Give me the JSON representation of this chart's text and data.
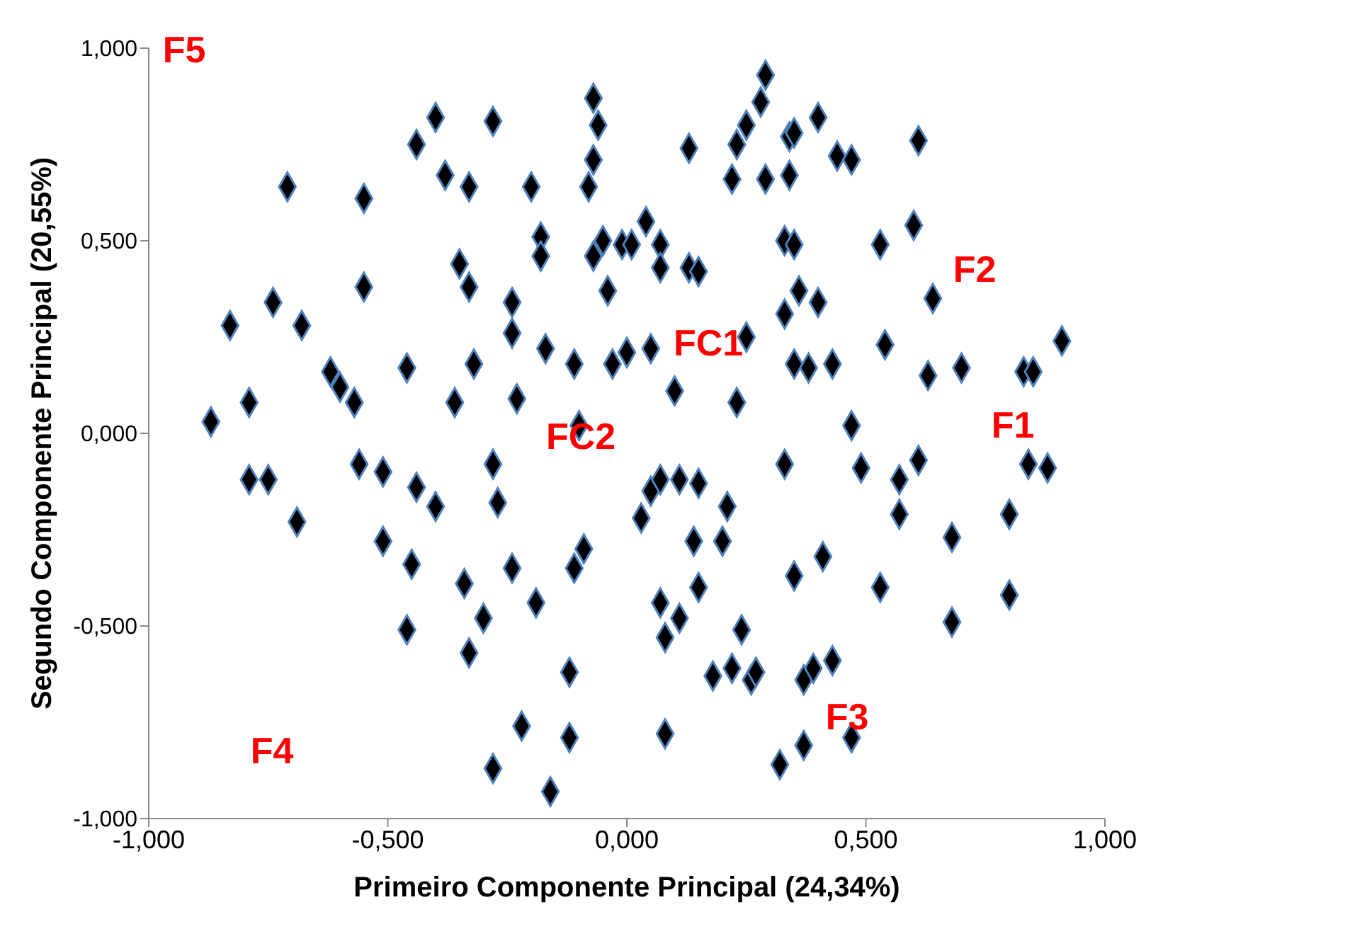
{
  "chart_data": {
    "type": "scatter",
    "xlabel": "Primeiro Componente Principal (24,34%)",
    "ylabel": "Segundo Componente Principal (20,55%)",
    "xlim": [
      -1,
      1
    ],
    "ylim": [
      -1,
      1
    ],
    "xticks": [
      {
        "value": -1,
        "label": "-1,000"
      },
      {
        "value": -0.5,
        "label": "-0,500"
      },
      {
        "value": 0,
        "label": "0,000"
      },
      {
        "value": 0.5,
        "label": "0,500"
      },
      {
        "value": 1,
        "label": "1,000"
      }
    ],
    "yticks": [
      {
        "value": -1,
        "label": "-1,000"
      },
      {
        "value": -0.5,
        "label": "-0,500"
      },
      {
        "value": 0,
        "label": "0,000"
      },
      {
        "value": 0.5,
        "label": "0,500"
      },
      {
        "value": 1,
        "label": "1,000"
      }
    ],
    "grid": false,
    "legend": false,
    "marker": "diamond",
    "x": [
      -0.87,
      -0.79,
      -0.83,
      -0.74,
      -0.68,
      -0.71,
      -0.55,
      -0.55,
      -0.62,
      -0.6,
      -0.57,
      -0.46,
      -0.44,
      -0.4,
      -0.38,
      -0.33,
      -0.35,
      -0.33,
      -0.36,
      -0.32,
      -0.28,
      -0.24,
      -0.24,
      -0.23,
      -0.2,
      -0.18,
      -0.18,
      -0.17,
      -0.11,
      -0.08,
      -0.07,
      -0.07,
      -0.06,
      -0.07,
      -0.05,
      -0.04,
      -0.03,
      -0.1,
      0.0,
      -0.01,
      0.29,
      0.28,
      0.25,
      0.23,
      0.13,
      0.4,
      0.34,
      0.35,
      0.44,
      0.47,
      0.61,
      0.22,
      0.29,
      0.34,
      0.04,
      0.01,
      0.07,
      0.07,
      0.13,
      0.15,
      0.33,
      0.35,
      0.53,
      0.6,
      0.36,
      0.4,
      0.33,
      0.64,
      0.25,
      0.54,
      0.91,
      0.05,
      0.35,
      0.38,
      0.43,
      0.63,
      0.7,
      0.83,
      0.85,
      0.1,
      0.23,
      0.47,
      -0.79,
      -0.75,
      -0.69,
      -0.56,
      -0.51,
      -0.44,
      -0.4,
      -0.51,
      -0.45,
      -0.46,
      -0.34,
      -0.3,
      -0.33,
      -0.28,
      -0.27,
      -0.24,
      -0.19,
      -0.09,
      -0.11,
      -0.12,
      -0.22,
      -0.12,
      -0.28,
      -0.16,
      0.33,
      0.49,
      0.57,
      0.61,
      0.84,
      0.88,
      0.05,
      0.07,
      0.11,
      0.15,
      0.03,
      0.21,
      0.14,
      0.2,
      0.57,
      0.8,
      0.68,
      0.41,
      0.35,
      0.15,
      0.53,
      0.8,
      0.07,
      0.11,
      0.08,
      0.24,
      0.68,
      0.18,
      0.22,
      0.26,
      0.27,
      0.37,
      0.39,
      0.43,
      0.08,
      0.47,
      0.37,
      0.32
    ],
    "values": [
      0.03,
      0.08,
      0.28,
      0.34,
      0.28,
      0.64,
      0.61,
      0.38,
      0.16,
      0.12,
      0.08,
      0.17,
      0.75,
      0.82,
      0.67,
      0.64,
      0.44,
      0.38,
      0.08,
      0.18,
      0.81,
      0.34,
      0.26,
      0.09,
      0.64,
      0.51,
      0.46,
      0.22,
      0.18,
      0.64,
      0.71,
      0.87,
      0.8,
      0.46,
      0.5,
      0.37,
      0.18,
      0.02,
      0.21,
      0.49,
      0.93,
      0.86,
      0.8,
      0.75,
      0.74,
      0.82,
      0.77,
      0.78,
      0.72,
      0.71,
      0.76,
      0.66,
      0.66,
      0.67,
      0.55,
      0.49,
      0.49,
      0.43,
      0.43,
      0.42,
      0.5,
      0.49,
      0.49,
      0.54,
      0.37,
      0.34,
      0.31,
      0.35,
      0.25,
      0.23,
      0.24,
      0.22,
      0.18,
      0.17,
      0.18,
      0.15,
      0.17,
      0.16,
      0.16,
      0.11,
      0.08,
      0.02,
      -0.12,
      -0.12,
      -0.23,
      -0.08,
      -0.1,
      -0.14,
      -0.19,
      -0.28,
      -0.34,
      -0.51,
      -0.39,
      -0.48,
      -0.57,
      -0.08,
      -0.18,
      -0.35,
      -0.44,
      -0.3,
      -0.35,
      -0.62,
      -0.76,
      -0.79,
      -0.87,
      -0.93,
      -0.08,
      -0.09,
      -0.12,
      -0.07,
      -0.08,
      -0.09,
      -0.15,
      -0.12,
      -0.12,
      -0.13,
      -0.22,
      -0.19,
      -0.28,
      -0.28,
      -0.21,
      -0.21,
      -0.27,
      -0.32,
      -0.37,
      -0.4,
      -0.4,
      -0.42,
      -0.44,
      -0.48,
      -0.53,
      -0.51,
      -0.49,
      -0.63,
      -0.61,
      -0.64,
      -0.62,
      -0.64,
      -0.61,
      -0.59,
      -0.78,
      -0.79,
      -0.81,
      -0.86
    ],
    "color": "#000000",
    "annotations": [
      "F5",
      "F2",
      "FC1",
      "FC2",
      "F1",
      "F3",
      "F4"
    ]
  }
}
